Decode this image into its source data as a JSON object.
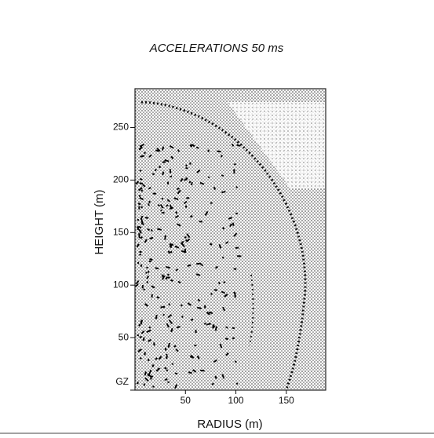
{
  "chart_data": {
    "type": "field",
    "title": "ACCELERATIONS 50 ms",
    "x_label": "RADIUS (m)",
    "y_label": "HEIGHT (m)",
    "xlim": [
      0,
      189
    ],
    "ylim": [
      0,
      287
    ],
    "xticks": [
      50,
      100,
      150
    ],
    "yticks": [
      {
        "value": 0,
        "label": "GZ"
      },
      50,
      100,
      150,
      200,
      250
    ]
  }
}
